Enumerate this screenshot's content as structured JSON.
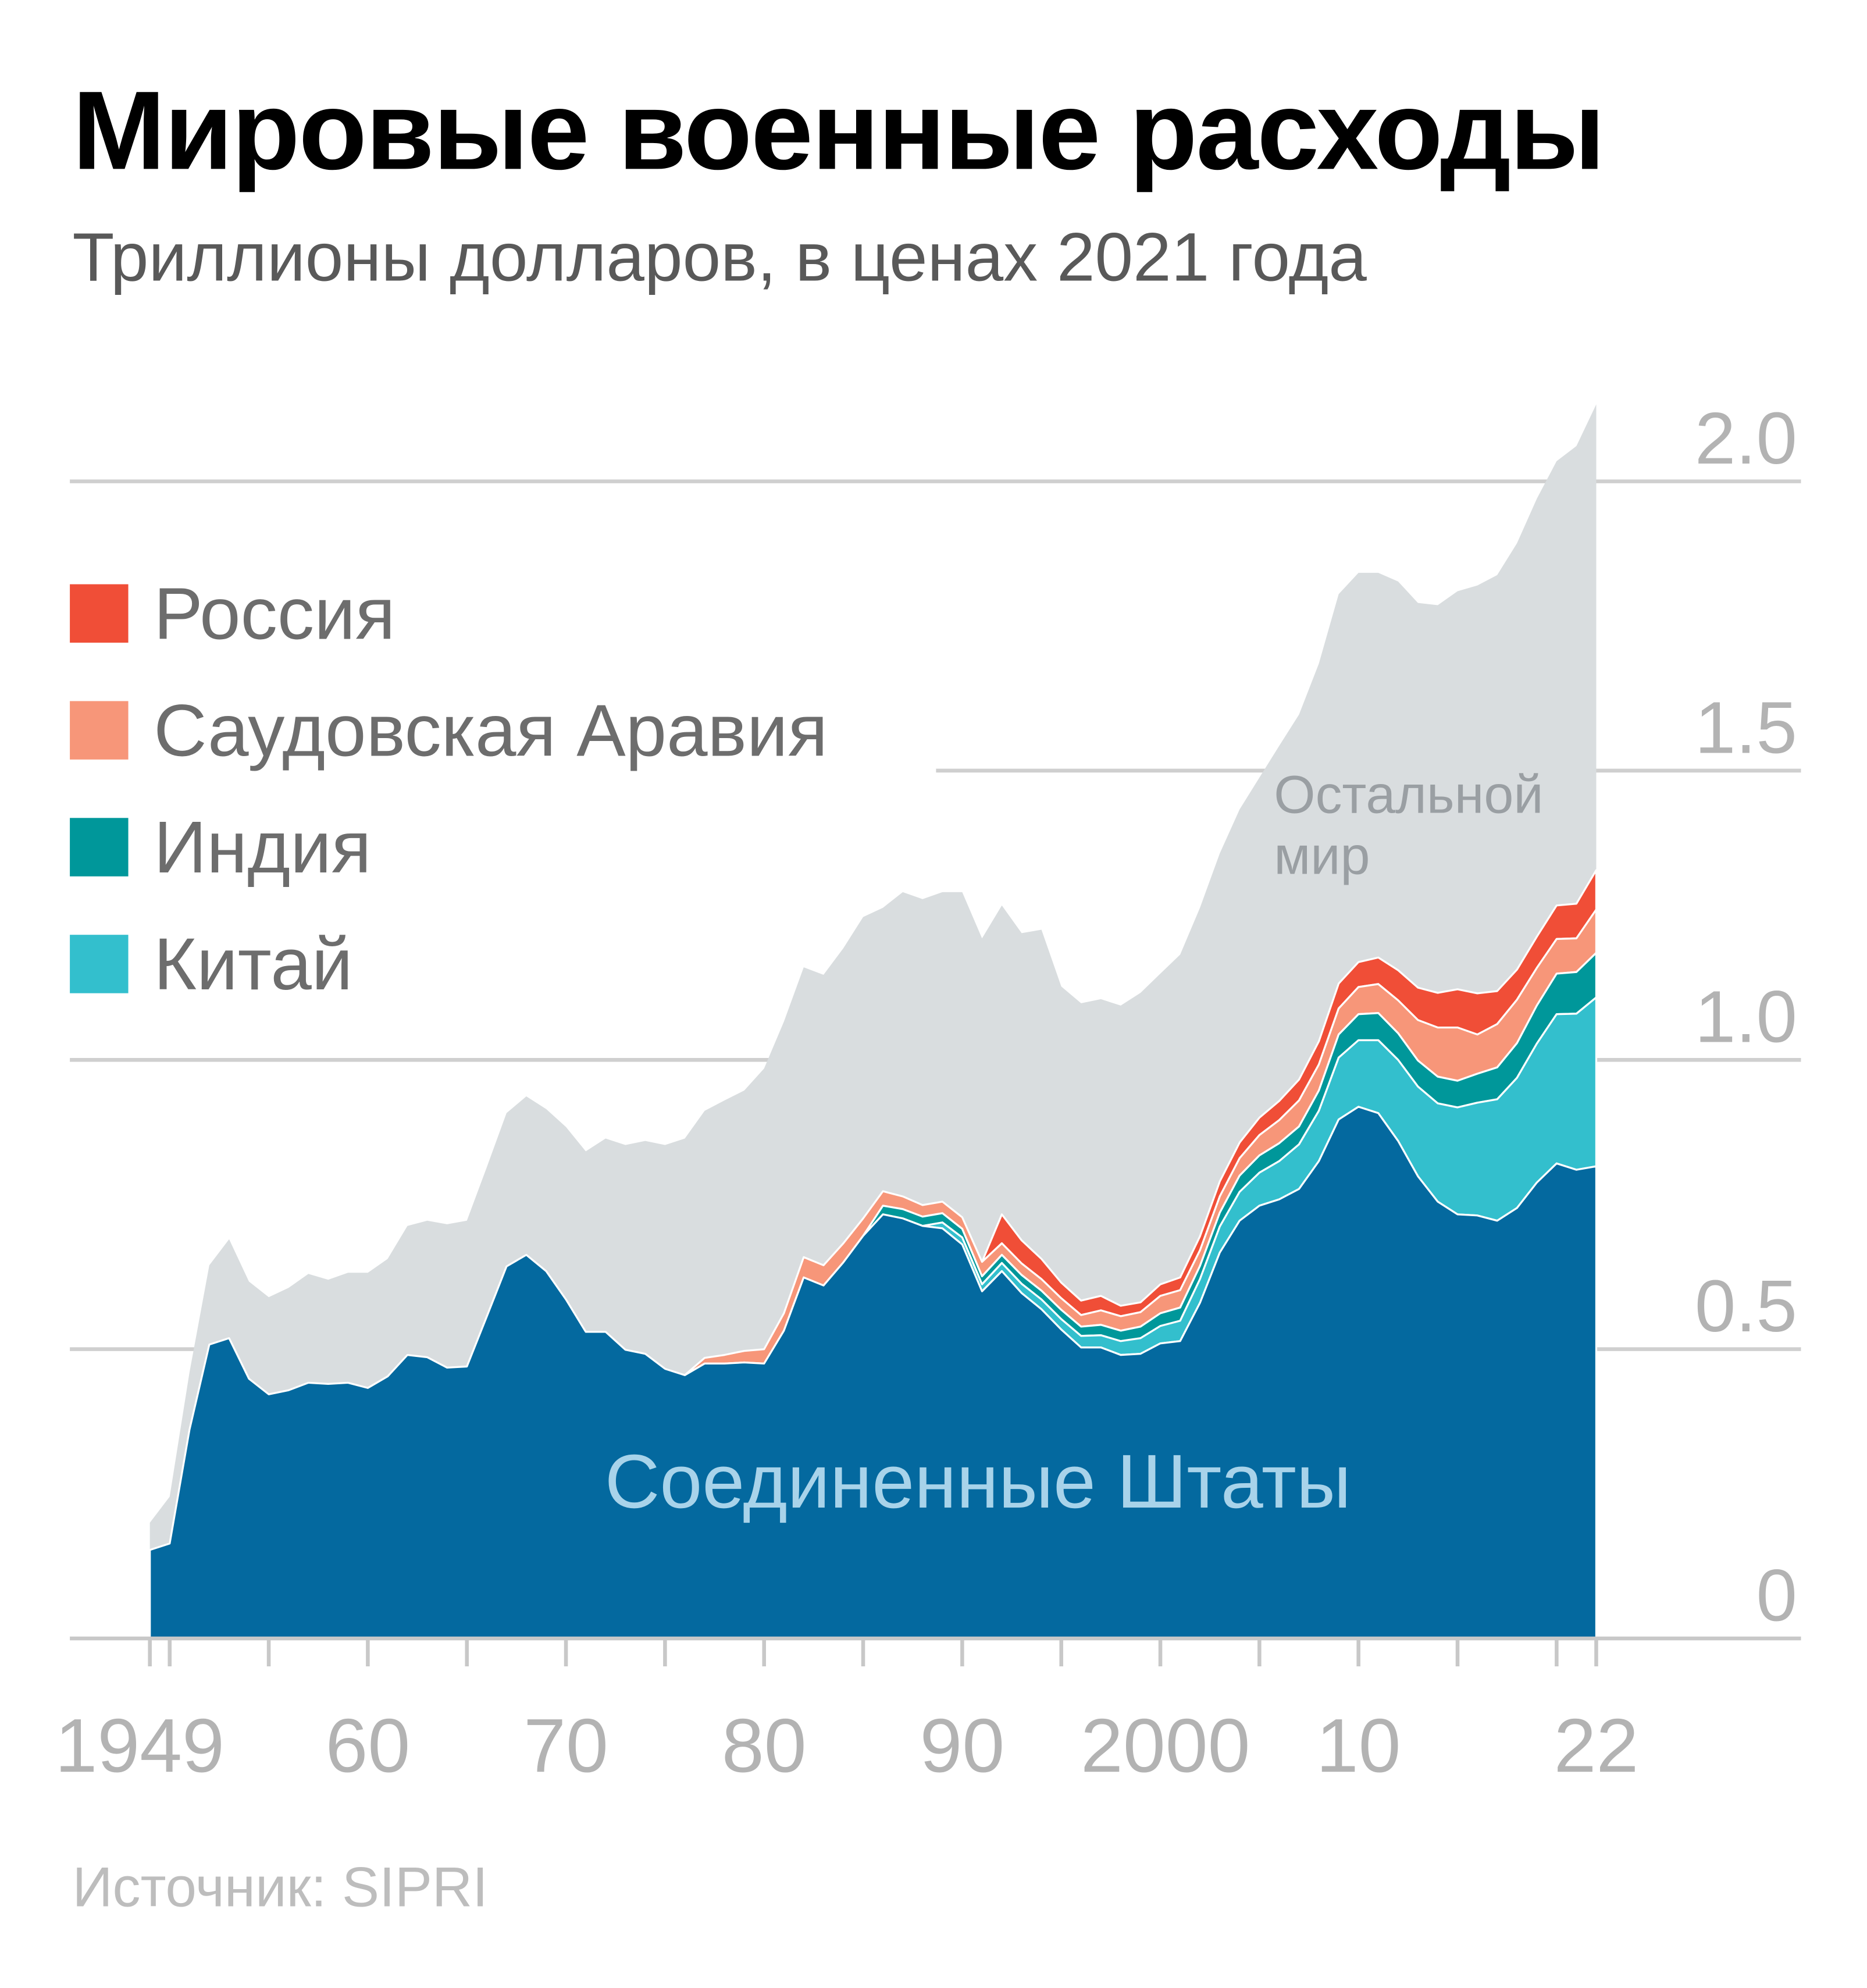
{
  "header": {
    "title": "Мировые военные расходы",
    "subtitle": "Триллионы долларов, в ценах 2021 года"
  },
  "footer": {
    "source": "Источник: SIPRI"
  },
  "labels": {
    "us": "Соединенные Штаты",
    "rest_line1": "Остальной",
    "rest_line2": "мир"
  },
  "legend": [
    {
      "label": "Россия",
      "color": "#F04E37"
    },
    {
      "label": "Саудовская Аравия",
      "color": "#F79679"
    },
    {
      "label": "Индия",
      "color": "#00979A"
    },
    {
      "label": "Китай",
      "color": "#33BFCD"
    }
  ],
  "chart_data": {
    "type": "area",
    "stacked": true,
    "title": "Мировые военные расходы",
    "subtitle": "Триллионы долларов, в ценах 2021 года",
    "ylim": [
      0,
      2.0
    ],
    "y_ticks": [
      {
        "value": 0,
        "label": "0"
      },
      {
        "value": 0.5,
        "label": "0.5"
      },
      {
        "value": 1.0,
        "label": "1.0"
      },
      {
        "value": 1.5,
        "label": "1.5"
      },
      {
        "value": 2.0,
        "label": "2.0"
      }
    ],
    "x_range": [
      1949,
      2022
    ],
    "x_tick_labels": [
      {
        "year": 1949,
        "label": "1949"
      },
      {
        "year": 1960,
        "label": "60"
      },
      {
        "year": 1970,
        "label": "70"
      },
      {
        "year": 1980,
        "label": "80"
      },
      {
        "year": 1990,
        "label": "90"
      },
      {
        "year": 2000,
        "label": "2000"
      },
      {
        "year": 2010,
        "label": "10"
      },
      {
        "year": 2022,
        "label": "22"
      }
    ],
    "world_total": {
      "start": 1949,
      "values": [
        0.2,
        0.245,
        0.46,
        0.645,
        0.69,
        0.617,
        0.59,
        0.606,
        0.63,
        0.62,
        0.632,
        0.632,
        0.656,
        0.713,
        0.722,
        0.716,
        0.722,
        0.814,
        0.908,
        0.937,
        0.915,
        0.884,
        0.842,
        0.864,
        0.853,
        0.86,
        0.853,
        0.864,
        0.912,
        0.93,
        0.947,
        0.985,
        1.066,
        1.16,
        1.147,
        1.193,
        1.247,
        1.263,
        1.29,
        1.278,
        1.29,
        1.29,
        1.21,
        1.267,
        1.219,
        1.225,
        1.127,
        1.098,
        1.105,
        1.094,
        1.116,
        1.149,
        1.182,
        1.263,
        1.357,
        1.433,
        1.488,
        1.543,
        1.597,
        1.685,
        1.805,
        1.842,
        1.842,
        1.827,
        1.79,
        1.786,
        1.81,
        1.82,
        1.838,
        1.893,
        1.97,
        2.035,
        2.061,
        2.133
      ]
    },
    "series": [
      {
        "name": "Соединенные Штаты",
        "color": "#04699F",
        "start": 1949,
        "values": [
          0.153,
          0.164,
          0.361,
          0.508,
          0.519,
          0.449,
          0.422,
          0.429,
          0.442,
          0.44,
          0.442,
          0.433,
          0.453,
          0.49,
          0.486,
          0.468,
          0.47,
          0.556,
          0.643,
          0.663,
          0.635,
          0.586,
          0.53,
          0.53,
          0.499,
          0.492,
          0.466,
          0.455,
          0.475,
          0.475,
          0.477,
          0.475,
          0.532,
          0.624,
          0.61,
          0.65,
          0.696,
          0.733,
          0.726,
          0.713,
          0.709,
          0.681,
          0.6,
          0.635,
          0.597,
          0.569,
          0.534,
          0.503,
          0.503,
          0.49,
          0.492,
          0.51,
          0.514,
          0.58,
          0.667,
          0.722,
          0.748,
          0.759,
          0.777,
          0.825,
          0.897,
          0.919,
          0.908,
          0.86,
          0.799,
          0.755,
          0.733,
          0.731,
          0.722,
          0.744,
          0.788,
          0.821,
          0.81,
          0.816
        ]
      },
      {
        "name": "Китай",
        "color": "#33BFCD",
        "start": 1989,
        "values": [
          0.01,
          0.012,
          0.012,
          0.014,
          0.016,
          0.017,
          0.018,
          0.02,
          0.021,
          0.024,
          0.027,
          0.03,
          0.035,
          0.041,
          0.045,
          0.05,
          0.057,
          0.066,
          0.077,
          0.087,
          0.107,
          0.115,
          0.126,
          0.14,
          0.155,
          0.17,
          0.185,
          0.195,
          0.21,
          0.225,
          0.24,
          0.258,
          0.27,
          0.292
        ]
      },
      {
        "name": "Индия",
        "color": "#00979A",
        "start": 1986,
        "values": [
          0.015,
          0.016,
          0.016,
          0.016,
          0.015,
          0.014,
          0.014,
          0.015,
          0.015,
          0.016,
          0.016,
          0.018,
          0.018,
          0.02,
          0.022,
          0.023,
          0.023,
          0.024,
          0.028,
          0.03,
          0.031,
          0.031,
          0.035,
          0.04,
          0.045,
          0.047,
          0.046,
          0.045,
          0.046,
          0.046,
          0.05,
          0.055,
          0.06,
          0.066,
          0.07,
          0.072,
          0.077
        ]
      },
      {
        "name": "Саудовская Аравия",
        "color": "#F79679",
        "start": 1977,
        "values": [
          0.01,
          0.015,
          0.02,
          0.025,
          0.03,
          0.035,
          0.035,
          0.033,
          0.03,
          0.025,
          0.022,
          0.02,
          0.02,
          0.02,
          0.025,
          0.02,
          0.02,
          0.02,
          0.02,
          0.02,
          0.025,
          0.025,
          0.025,
          0.03,
          0.03,
          0.027,
          0.028,
          0.03,
          0.035,
          0.04,
          0.045,
          0.045,
          0.045,
          0.047,
          0.05,
          0.057,
          0.07,
          0.085,
          0.092,
          0.068,
          0.075,
          0.075,
          0.065,
          0.06,
          0.058,
          0.075
        ]
      },
      {
        "name": "Россия",
        "color": "#F04E37",
        "start": 1992,
        "values": [
          0.05,
          0.04,
          0.035,
          0.027,
          0.025,
          0.025,
          0.018,
          0.017,
          0.02,
          0.022,
          0.024,
          0.026,
          0.027,
          0.03,
          0.033,
          0.036,
          0.04,
          0.043,
          0.043,
          0.046,
          0.052,
          0.056,
          0.06,
          0.066,
          0.071,
          0.057,
          0.052,
          0.054,
          0.058,
          0.06,
          0.068
        ]
      },
      {
        "name": "Остальной мир",
        "color": "#D9DDDF",
        "computed_as": "world_total minus other series"
      }
    ]
  }
}
